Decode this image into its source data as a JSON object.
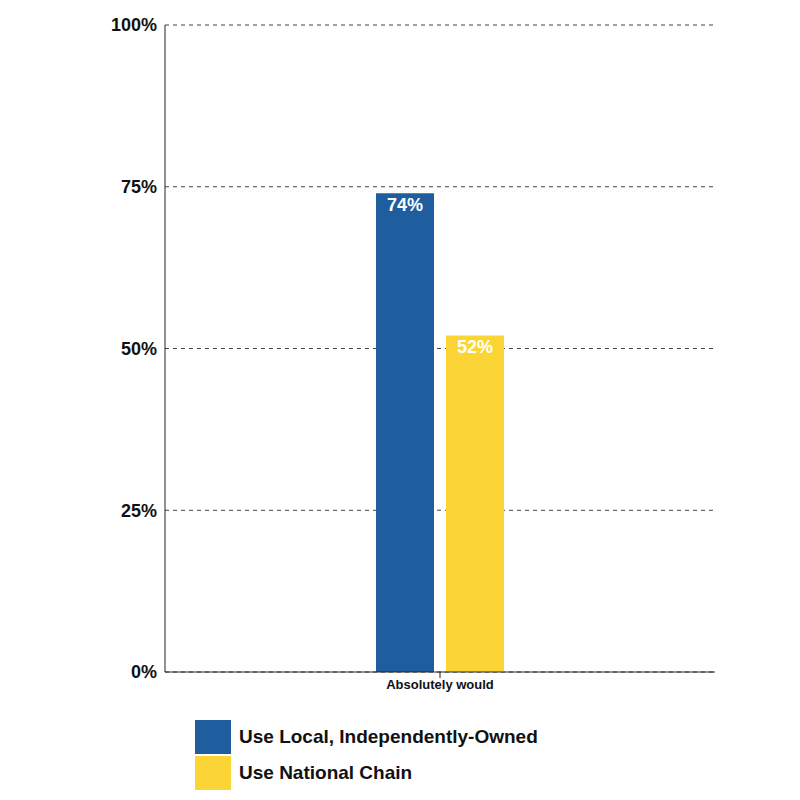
{
  "chart_data": {
    "type": "bar",
    "categories": [
      "Absolutely would"
    ],
    "series": [
      {
        "name": "Use Local, Independently-Owned",
        "color": "#1f5e9e",
        "values": [
          74
        ],
        "value_labels": [
          "74%"
        ]
      },
      {
        "name": "Use National Chain",
        "color": "#fbd535",
        "values": [
          52
        ],
        "value_labels": [
          "52%"
        ]
      }
    ],
    "ylim": [
      0,
      100
    ],
    "yticks": [
      {
        "value": 0,
        "label": "0%"
      },
      {
        "value": 25,
        "label": "25%"
      },
      {
        "value": 50,
        "label": "50%"
      },
      {
        "value": 75,
        "label": "75%"
      },
      {
        "value": 100,
        "label": "100%"
      }
    ],
    "grid": true,
    "data_labels": true,
    "legend": "bottom"
  }
}
